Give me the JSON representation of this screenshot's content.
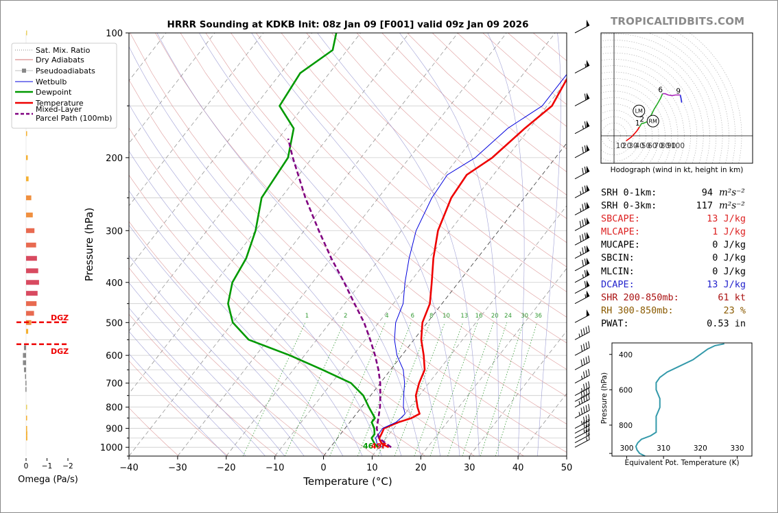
{
  "title": "HRRR Sounding at KDKB Init: 08z Jan 09 [F001] valid 09z Jan 09 2026",
  "brand": "TROPICALTIDBITS.COM",
  "colors": {
    "temperature": "#ee0000",
    "dewpoint": "#009900",
    "wetbulb": "#0000dd",
    "parcel": "#800080",
    "dry_adiabat": "#d07070",
    "moist_adiabat": "#8888cc",
    "isotherm": "#888888",
    "mixing_ratio": "#339933"
  },
  "chart_data": [
    {
      "type": "line",
      "name": "skew-t",
      "xlabel": "Temperature (°C)",
      "ylabel": "Pressure (hPa)",
      "xlim": [
        -40,
        50
      ],
      "ylim": [
        1050,
        100
      ],
      "x_ticks": [
        "−40",
        "−30",
        "−20",
        "−10",
        "0",
        "10",
        "20",
        "30",
        "40",
        "50"
      ],
      "y_ticks": [
        "100",
        "200",
        "300",
        "400",
        "500",
        "600",
        "700",
        "800",
        "900",
        "1000"
      ],
      "series": [
        {
          "name": "Temperature",
          "points": [
            [
              1000,
              12.0
            ],
            [
              980,
              10.0
            ],
            [
              960,
              9.0
            ],
            [
              950,
              8.6
            ],
            [
              930,
              8.4
            ],
            [
              900,
              8.0
            ],
            [
              870,
              10.0
            ],
            [
              850,
              12.0
            ],
            [
              830,
              13.0
            ],
            [
              800,
              11.5
            ],
            [
              750,
              9.3
            ],
            [
              700,
              8.0
            ],
            [
              650,
              7.0
            ],
            [
              600,
              4.5
            ],
            [
              550,
              1.5
            ],
            [
              500,
              -1.0
            ],
            [
              450,
              -2.5
            ],
            [
              400,
              -5.5
            ],
            [
              350,
              -9.0
            ],
            [
              300,
              -12.5
            ],
            [
              250,
              -15.0
            ],
            [
              220,
              -15.5
            ],
            [
              200,
              -13.0
            ],
            [
              170,
              -11.0
            ],
            [
              150,
              -9.0
            ],
            [
              125,
              -10.5
            ],
            [
              110,
              -7.0
            ],
            [
              100,
              -4.0
            ]
          ]
        },
        {
          "name": "Dewpoint",
          "points": [
            [
              1000,
              9.8
            ],
            [
              980,
              8.5
            ],
            [
              960,
              7.5
            ],
            [
              950,
              7.0
            ],
            [
              930,
              7.0
            ],
            [
              900,
              6.0
            ],
            [
              870,
              4.5
            ],
            [
              850,
              4.5
            ],
            [
              800,
              1.5
            ],
            [
              750,
              -1.5
            ],
            [
              700,
              -6.0
            ],
            [
              650,
              -14.0
            ],
            [
              600,
              -23.0
            ],
            [
              550,
              -34.0
            ],
            [
              500,
              -40.0
            ],
            [
              450,
              -44.0
            ],
            [
              400,
              -46.5
            ],
            [
              350,
              -47.5
            ],
            [
              300,
              -50.0
            ],
            [
              250,
              -54.0
            ],
            [
              200,
              -55.0
            ],
            [
              170,
              -58.5
            ],
            [
              150,
              -65.0
            ],
            [
              125,
              -66.0
            ],
            [
              110,
              -63.0
            ],
            [
              100,
              -65.0
            ]
          ]
        },
        {
          "name": "Wetbulb",
          "points": [
            [
              1000,
              10.8
            ],
            [
              980,
              9.0
            ],
            [
              960,
              8.3
            ],
            [
              950,
              7.8
            ],
            [
              930,
              7.8
            ],
            [
              900,
              7.7
            ],
            [
              870,
              9.5
            ],
            [
              850,
              9.8
            ],
            [
              830,
              10.0
            ],
            [
              800,
              8.6
            ],
            [
              750,
              6.8
            ],
            [
              700,
              5.0
            ],
            [
              650,
              2.6
            ],
            [
              600,
              -1.0
            ],
            [
              550,
              -4.0
            ],
            [
              500,
              -6.5
            ],
            [
              450,
              -8.0
            ],
            [
              400,
              -11.0
            ],
            [
              350,
              -14.0
            ],
            [
              300,
              -17.0
            ],
            [
              250,
              -19.0
            ],
            [
              220,
              -19.5
            ],
            [
              200,
              -16.5
            ],
            [
              170,
              -14.5
            ],
            [
              150,
              -11.0
            ],
            [
              125,
              -11.0
            ],
            [
              110,
              -7.5
            ],
            [
              100,
              -4.0
            ]
          ]
        },
        {
          "name": "Mixed-Layer Parcel Path (100mb)",
          "points": [
            [
              1000,
              12.5
            ],
            [
              950,
              8.5
            ],
            [
              900,
              6.5
            ],
            [
              850,
              5.2
            ],
            [
              800,
              3.8
            ],
            [
              750,
              2.0
            ],
            [
              700,
              0.0
            ],
            [
              650,
              -2.5
            ],
            [
              600,
              -5.5
            ],
            [
              550,
              -9.0
            ],
            [
              500,
              -13.0
            ],
            [
              450,
              -18.0
            ],
            [
              400,
              -23.5
            ],
            [
              350,
              -30.0
            ],
            [
              300,
              -37.0
            ],
            [
              250,
              -45.0
            ],
            [
              200,
              -54.0
            ],
            [
              180,
              -58.0
            ]
          ]
        }
      ],
      "mixing_ratio_labels": [
        "1",
        "2",
        "4",
        "6",
        "8",
        "10",
        "13",
        "16",
        "20",
        "24",
        "30",
        "36"
      ],
      "surface_labels": {
        "dewpoint": "46",
        "temperature": "49F"
      },
      "wind_barbs": [
        {
          "p": 1000,
          "kt": 15
        },
        {
          "p": 975,
          "kt": 20
        },
        {
          "p": 950,
          "kt": 25
        },
        {
          "p": 925,
          "kt": 30
        },
        {
          "p": 900,
          "kt": 35
        },
        {
          "p": 850,
          "kt": 45
        },
        {
          "p": 800,
          "kt": 45
        },
        {
          "p": 775,
          "kt": 40
        },
        {
          "p": 750,
          "kt": 35
        },
        {
          "p": 700,
          "kt": 35
        },
        {
          "p": 650,
          "kt": 40
        },
        {
          "p": 600,
          "kt": 40
        },
        {
          "p": 550,
          "kt": 45
        },
        {
          "p": 500,
          "kt": 50
        },
        {
          "p": 450,
          "kt": 55
        },
        {
          "p": 425,
          "kt": 60
        },
        {
          "p": 400,
          "kt": 65
        },
        {
          "p": 375,
          "kt": 70
        },
        {
          "p": 350,
          "kt": 75
        },
        {
          "p": 325,
          "kt": 80
        },
        {
          "p": 300,
          "kt": 80
        },
        {
          "p": 275,
          "kt": 75
        },
        {
          "p": 250,
          "kt": 75
        },
        {
          "p": 225,
          "kt": 70
        },
        {
          "p": 200,
          "kt": 70
        },
        {
          "p": 175,
          "kt": 65
        },
        {
          "p": 150,
          "kt": 60
        },
        {
          "p": 125,
          "kt": 55
        },
        {
          "p": 100,
          "kt": 50
        }
      ]
    },
    {
      "type": "bar",
      "name": "omega",
      "xlabel": "Omega (Pa/s)",
      "x_ticks": [
        "0",
        "−1",
        "−2"
      ],
      "xlim": [
        0.2,
        -2.3
      ],
      "values": [
        [
          100,
          0
        ],
        [
          150,
          -0.02
        ],
        [
          175,
          -0.05
        ],
        [
          200,
          -0.08
        ],
        [
          225,
          -0.12
        ],
        [
          250,
          -0.25
        ],
        [
          275,
          -0.32
        ],
        [
          300,
          -0.4
        ],
        [
          325,
          -0.48
        ],
        [
          350,
          -0.52
        ],
        [
          375,
          -0.58
        ],
        [
          400,
          -0.62
        ],
        [
          425,
          -0.55
        ],
        [
          450,
          -0.5
        ],
        [
          475,
          -0.38
        ],
        [
          500,
          -0.25
        ],
        [
          525,
          -0.1
        ],
        [
          575,
          0.1
        ],
        [
          600,
          0.15
        ],
        [
          625,
          0.15
        ],
        [
          650,
          0.1
        ],
        [
          675,
          0.05
        ],
        [
          700,
          0.03
        ],
        [
          725,
          0.03
        ],
        [
          800,
          0
        ],
        [
          850,
          -0.03
        ],
        [
          900,
          -0.05
        ],
        [
          925,
          -0.06
        ],
        [
          950,
          -0.06
        ]
      ],
      "dgz_label": "DGZ",
      "dgz_pressures": [
        500,
        565
      ]
    },
    {
      "type": "line",
      "name": "hodograph",
      "xlabel": "Hodograph (wind in kt, height in km)",
      "ring_labels": [
        "10",
        "20",
        "30",
        "40",
        "50",
        "60",
        "70",
        "80",
        "90",
        "100"
      ],
      "points_kt": [
        [
          19,
          -8
        ],
        [
          27,
          -2
        ],
        [
          31,
          2
        ],
        [
          36,
          8
        ],
        [
          40,
          14
        ],
        [
          43,
          19
        ],
        [
          47,
          20
        ],
        [
          52,
          22
        ],
        [
          58,
          32
        ],
        [
          63,
          42
        ],
        [
          68,
          50
        ],
        [
          73,
          59
        ],
        [
          76,
          66
        ],
        [
          80,
          66
        ],
        [
          85,
          64
        ],
        [
          91,
          63
        ],
        [
          96,
          64
        ],
        [
          104,
          64
        ],
        [
          105,
          59
        ],
        [
          106,
          52
        ]
      ],
      "height_labels": [
        {
          "label": "1",
          "idx": 4
        },
        {
          "label": "2",
          "idx": 6
        },
        {
          "label": "6",
          "idx": 12
        },
        {
          "label": "9",
          "idx": 17
        }
      ],
      "storm_motion": [
        {
          "label": "LM",
          "u": 39,
          "v": 39
        },
        {
          "label": "RM",
          "u": 61,
          "v": 23
        }
      ]
    },
    {
      "type": "line",
      "name": "theta-e",
      "xlabel": "Equivalent Pot. Temperature (K)",
      "ylabel": "Pressure (hPa)",
      "xlim": [
        296,
        334
      ],
      "ylim": [
        975,
        335
      ],
      "x_ticks": [
        "300",
        "310",
        "320",
        "330"
      ],
      "y_ticks": [
        "400",
        "600",
        "800"
      ],
      "points": [
        [
          975,
          305.0
        ],
        [
          960,
          303.5
        ],
        [
          940,
          302.8
        ],
        [
          920,
          302.5
        ],
        [
          900,
          303.0
        ],
        [
          880,
          304.0
        ],
        [
          860,
          306.5
        ],
        [
          840,
          308.0
        ],
        [
          820,
          308.0
        ],
        [
          800,
          308.0
        ],
        [
          750,
          308.0
        ],
        [
          700,
          309.0
        ],
        [
          650,
          309.0
        ],
        [
          600,
          308.0
        ],
        [
          560,
          308.0
        ],
        [
          530,
          309.0
        ],
        [
          500,
          311.0
        ],
        [
          470,
          314.0
        ],
        [
          430,
          318.0
        ],
        [
          400,
          320.0
        ],
        [
          370,
          322.0
        ],
        [
          350,
          324.0
        ],
        [
          340,
          326.5
        ]
      ]
    }
  ],
  "legend": [
    "Sat. Mix. Ratio",
    "Dry Adiabats",
    "Pseudoadiabats",
    "Wetbulb",
    "Dewpoint",
    "Temperature",
    "Mixed-Layer\nParcel Path (100mb)"
  ],
  "indices": [
    {
      "label": "SRH 0-1km:",
      "value": "94",
      "unit": "m²s⁻²",
      "color": "#000000"
    },
    {
      "label": "SRH 0-3km:",
      "value": "117",
      "unit": "m²s⁻²",
      "color": "#000000"
    },
    {
      "label": "SBCAPE:",
      "value": "13 J/kg",
      "unit": "",
      "color": "#dd2222"
    },
    {
      "label": "MLCAPE:",
      "value": "1 J/kg",
      "unit": "",
      "color": "#dd2222"
    },
    {
      "label": "MUCAPE:",
      "value": "0 J/kg",
      "unit": "",
      "color": "#000000"
    },
    {
      "label": "SBCIN:",
      "value": "0 J/kg",
      "unit": "",
      "color": "#000000"
    },
    {
      "label": "MLCIN:",
      "value": "0 J/kg",
      "unit": "",
      "color": "#000000"
    },
    {
      "label": "DCAPE:",
      "value": "13 J/kg",
      "unit": "",
      "color": "#2222cc"
    },
    {
      "label": "SHR 200-850mb:",
      "value": "61 kt",
      "unit": "",
      "color": "#aa1111"
    },
    {
      "label": "RH 300-850mb:",
      "value": "23 %",
      "unit": "",
      "color": "#8a5a00"
    },
    {
      "label": "PWAT:",
      "value": "0.53 in",
      "unit": "",
      "color": "#000000"
    }
  ]
}
